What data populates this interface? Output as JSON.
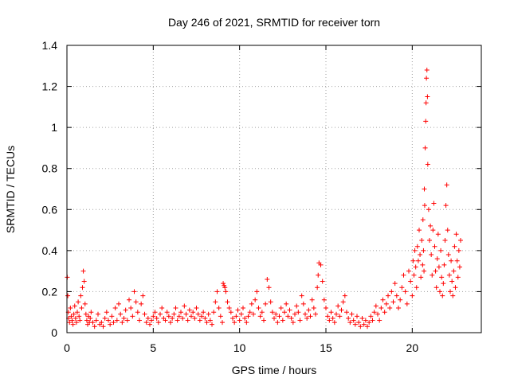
{
  "chart_data": {
    "type": "scatter",
    "title": "Day 246 of 2021, SRMTID for receiver torn",
    "xlabel": "GPS time / hours",
    "ylabel": "SRMTID / TECUs",
    "xlim": [
      0,
      24
    ],
    "ylim": [
      0,
      1.4
    ],
    "xticks": [
      0,
      5,
      10,
      15,
      20
    ],
    "yticks": [
      0,
      0.2,
      0.4,
      0.6,
      0.8,
      1,
      1.2,
      1.4
    ],
    "xtick_labels": [
      "0",
      "5",
      "10",
      "15",
      "20"
    ],
    "ytick_labels": [
      "0",
      "0.2",
      "0.4",
      "0.6",
      "0.8",
      "1",
      "1.2",
      "1.4"
    ],
    "grid": true,
    "marker": "+",
    "color": "#ff0000",
    "series": [
      {
        "name": "SRMTID",
        "x": [
          0.02,
          0.05,
          0.08,
          0.1,
          0.15,
          0.2,
          0.25,
          0.3,
          0.35,
          0.4,
          0.45,
          0.5,
          0.55,
          0.6,
          0.65,
          0.7,
          0.75,
          0.8,
          0.85,
          0.9,
          0.95,
          1.0,
          1.05,
          1.1,
          1.15,
          1.2,
          1.25,
          1.3,
          1.35,
          1.4,
          1.5,
          1.6,
          1.7,
          1.8,
          1.9,
          2.0,
          2.1,
          2.2,
          2.3,
          2.4,
          2.5,
          2.6,
          2.7,
          2.8,
          2.9,
          3.0,
          3.1,
          3.2,
          3.3,
          3.4,
          3.5,
          3.6,
          3.7,
          3.8,
          3.9,
          4.0,
          4.1,
          4.2,
          4.3,
          4.4,
          4.5,
          4.6,
          4.7,
          4.8,
          4.9,
          5.0,
          5.1,
          5.2,
          5.3,
          5.4,
          5.5,
          5.6,
          5.7,
          5.8,
          5.9,
          6.0,
          6.1,
          6.2,
          6.3,
          6.4,
          6.5,
          6.6,
          6.7,
          6.8,
          6.9,
          7.0,
          7.1,
          7.2,
          7.3,
          7.4,
          7.5,
          7.6,
          7.7,
          7.8,
          7.9,
          8.0,
          8.1,
          8.2,
          8.3,
          8.4,
          8.5,
          8.6,
          8.7,
          8.8,
          8.9,
          9.0,
          9.05,
          9.1,
          9.15,
          9.2,
          9.3,
          9.4,
          9.5,
          9.6,
          9.7,
          9.8,
          9.9,
          10.0,
          10.1,
          10.2,
          10.3,
          10.4,
          10.5,
          10.6,
          10.7,
          10.8,
          10.9,
          11.0,
          11.1,
          11.2,
          11.3,
          11.4,
          11.5,
          11.6,
          11.7,
          11.8,
          11.9,
          12.0,
          12.1,
          12.2,
          12.3,
          12.4,
          12.5,
          12.6,
          12.7,
          12.8,
          12.9,
          13.0,
          13.1,
          13.2,
          13.3,
          13.4,
          13.5,
          13.6,
          13.7,
          13.8,
          13.9,
          14.0,
          14.1,
          14.2,
          14.3,
          14.4,
          14.5,
          14.55,
          14.6,
          14.7,
          14.8,
          14.9,
          15.0,
          15.1,
          15.2,
          15.3,
          15.4,
          15.5,
          15.6,
          15.7,
          15.8,
          15.9,
          16.0,
          16.1,
          16.2,
          16.3,
          16.4,
          16.5,
          16.6,
          16.7,
          16.8,
          16.9,
          17.0,
          17.1,
          17.2,
          17.3,
          17.4,
          17.5,
          17.6,
          17.7,
          17.8,
          17.9,
          18.0,
          18.1,
          18.2,
          18.3,
          18.4,
          18.5,
          18.6,
          18.7,
          18.8,
          18.9,
          19.0,
          19.1,
          19.2,
          19.3,
          19.4,
          19.5,
          19.6,
          19.7,
          19.8,
          19.9,
          20.0,
          20.05,
          20.1,
          20.15,
          20.2,
          20.25,
          20.3,
          20.35,
          20.4,
          20.45,
          20.5,
          20.55,
          20.6,
          20.62,
          20.65,
          20.68,
          20.7,
          20.72,
          20.75,
          20.78,
          20.8,
          20.82,
          20.85,
          20.88,
          20.9,
          20.95,
          21.0,
          21.05,
          21.1,
          21.15,
          21.2,
          21.25,
          21.3,
          21.35,
          21.4,
          21.45,
          21.5,
          21.55,
          21.6,
          21.65,
          21.7,
          21.75,
          21.8,
          21.85,
          21.9,
          21.95,
          22.0,
          22.05,
          22.1,
          22.15,
          22.2,
          22.25,
          22.3,
          22.35,
          22.4,
          22.45,
          22.5,
          22.55,
          22.6,
          22.65,
          22.7,
          22.75,
          22.8
        ],
        "y": [
          0.27,
          0.18,
          0.1,
          0.07,
          0.05,
          0.12,
          0.08,
          0.06,
          0.04,
          0.09,
          0.13,
          0.07,
          0.05,
          0.1,
          0.15,
          0.08,
          0.06,
          0.18,
          0.12,
          0.22,
          0.3,
          0.25,
          0.14,
          0.09,
          0.06,
          0.04,
          0.08,
          0.05,
          0.07,
          0.1,
          0.05,
          0.03,
          0.06,
          0.09,
          0.04,
          0.05,
          0.03,
          0.07,
          0.1,
          0.06,
          0.04,
          0.08,
          0.05,
          0.12,
          0.06,
          0.14,
          0.09,
          0.05,
          0.07,
          0.11,
          0.06,
          0.16,
          0.12,
          0.08,
          0.2,
          0.15,
          0.1,
          0.06,
          0.14,
          0.18,
          0.09,
          0.05,
          0.07,
          0.04,
          0.06,
          0.08,
          0.1,
          0.07,
          0.05,
          0.09,
          0.12,
          0.07,
          0.06,
          0.1,
          0.08,
          0.05,
          0.07,
          0.09,
          0.12,
          0.06,
          0.08,
          0.1,
          0.07,
          0.13,
          0.09,
          0.06,
          0.11,
          0.08,
          0.1,
          0.07,
          0.12,
          0.09,
          0.06,
          0.08,
          0.1,
          0.07,
          0.05,
          0.09,
          0.06,
          0.04,
          0.1,
          0.15,
          0.2,
          0.12,
          0.08,
          0.05,
          0.24,
          0.23,
          0.22,
          0.2,
          0.15,
          0.12,
          0.1,
          0.07,
          0.05,
          0.08,
          0.11,
          0.06,
          0.09,
          0.12,
          0.07,
          0.05,
          0.08,
          0.1,
          0.14,
          0.09,
          0.16,
          0.2,
          0.12,
          0.08,
          0.1,
          0.06,
          0.14,
          0.26,
          0.22,
          0.15,
          0.1,
          0.07,
          0.09,
          0.05,
          0.08,
          0.12,
          0.06,
          0.1,
          0.14,
          0.08,
          0.11,
          0.07,
          0.05,
          0.09,
          0.13,
          0.1,
          0.06,
          0.18,
          0.14,
          0.09,
          0.07,
          0.11,
          0.08,
          0.16,
          0.12,
          0.09,
          0.22,
          0.28,
          0.34,
          0.33,
          0.25,
          0.16,
          0.12,
          0.08,
          0.06,
          0.1,
          0.07,
          0.05,
          0.09,
          0.13,
          0.08,
          0.11,
          0.15,
          0.18,
          0.1,
          0.07,
          0.05,
          0.09,
          0.06,
          0.04,
          0.08,
          0.05,
          0.03,
          0.07,
          0.04,
          0.06,
          0.03,
          0.05,
          0.08,
          0.06,
          0.1,
          0.13,
          0.09,
          0.06,
          0.12,
          0.16,
          0.1,
          0.14,
          0.18,
          0.12,
          0.2,
          0.15,
          0.24,
          0.18,
          0.12,
          0.16,
          0.22,
          0.28,
          0.2,
          0.14,
          0.3,
          0.25,
          0.18,
          0.35,
          0.28,
          0.4,
          0.32,
          0.22,
          0.42,
          0.35,
          0.5,
          0.38,
          0.27,
          0.45,
          0.33,
          0.55,
          0.4,
          0.3,
          0.7,
          0.62,
          0.9,
          1.03,
          1.12,
          1.24,
          1.28,
          1.15,
          0.82,
          0.6,
          0.45,
          0.52,
          0.38,
          0.28,
          0.5,
          0.63,
          0.42,
          0.3,
          0.22,
          0.36,
          0.48,
          0.32,
          0.2,
          0.4,
          0.27,
          0.18,
          0.24,
          0.33,
          0.45,
          0.62,
          0.72,
          0.5,
          0.38,
          0.28,
          0.2,
          0.35,
          0.25,
          0.18,
          0.3,
          0.42,
          0.22,
          0.48,
          0.35,
          0.27,
          0.4,
          0.32,
          0.45
        ]
      }
    ]
  }
}
